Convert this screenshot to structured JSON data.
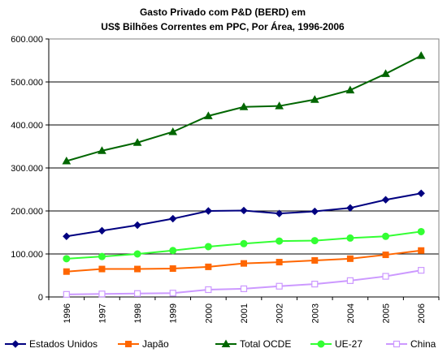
{
  "chart_data": {
    "type": "line",
    "title": [
      "Gasto Privado com P&D (BERD) em",
      "US$ Bilhões Correntes em PPC, Por Área, 1996-2006"
    ],
    "xlabel": "",
    "ylabel": "",
    "categories": [
      "1996",
      "1997",
      "1998",
      "1999",
      "2000",
      "2001",
      "2002",
      "2003",
      "2004",
      "2005",
      "2006"
    ],
    "ylim": [
      0,
      600000
    ],
    "yticks": [
      0,
      100000,
      200000,
      300000,
      400000,
      500000,
      600000
    ],
    "ytick_labels": [
      "0",
      "100.000",
      "200.000",
      "300.000",
      "400.000",
      "500.000",
      "600.000"
    ],
    "grid": "horizontal",
    "legend_position": "bottom",
    "series": [
      {
        "name": "Estados Unidos",
        "color": "#000080",
        "marker": "diamond",
        "values": [
          141000,
          154000,
          167000,
          182000,
          200000,
          201000,
          194000,
          199000,
          207000,
          226000,
          241000
        ]
      },
      {
        "name": "Japão",
        "color": "#ff6600",
        "marker": "square",
        "values": [
          59000,
          65000,
          65000,
          66000,
          70000,
          78000,
          81000,
          85000,
          89000,
          98000,
          108000
        ]
      },
      {
        "name": "Total OCDE",
        "color": "#006600",
        "marker": "triangle",
        "values": [
          316000,
          340000,
          359000,
          384000,
          421000,
          442000,
          444000,
          459000,
          481000,
          519000,
          561000
        ]
      },
      {
        "name": "UE-27",
        "color": "#33ff33",
        "marker": "circle",
        "values": [
          89000,
          94000,
          100000,
          108000,
          117000,
          124000,
          130000,
          131000,
          137000,
          141000,
          152000
        ]
      },
      {
        "name": "China",
        "color": "#cc99ff",
        "marker": "square-open",
        "values": [
          6000,
          7000,
          8000,
          9000,
          17000,
          19000,
          25000,
          30000,
          38000,
          48000,
          62000
        ]
      }
    ]
  }
}
